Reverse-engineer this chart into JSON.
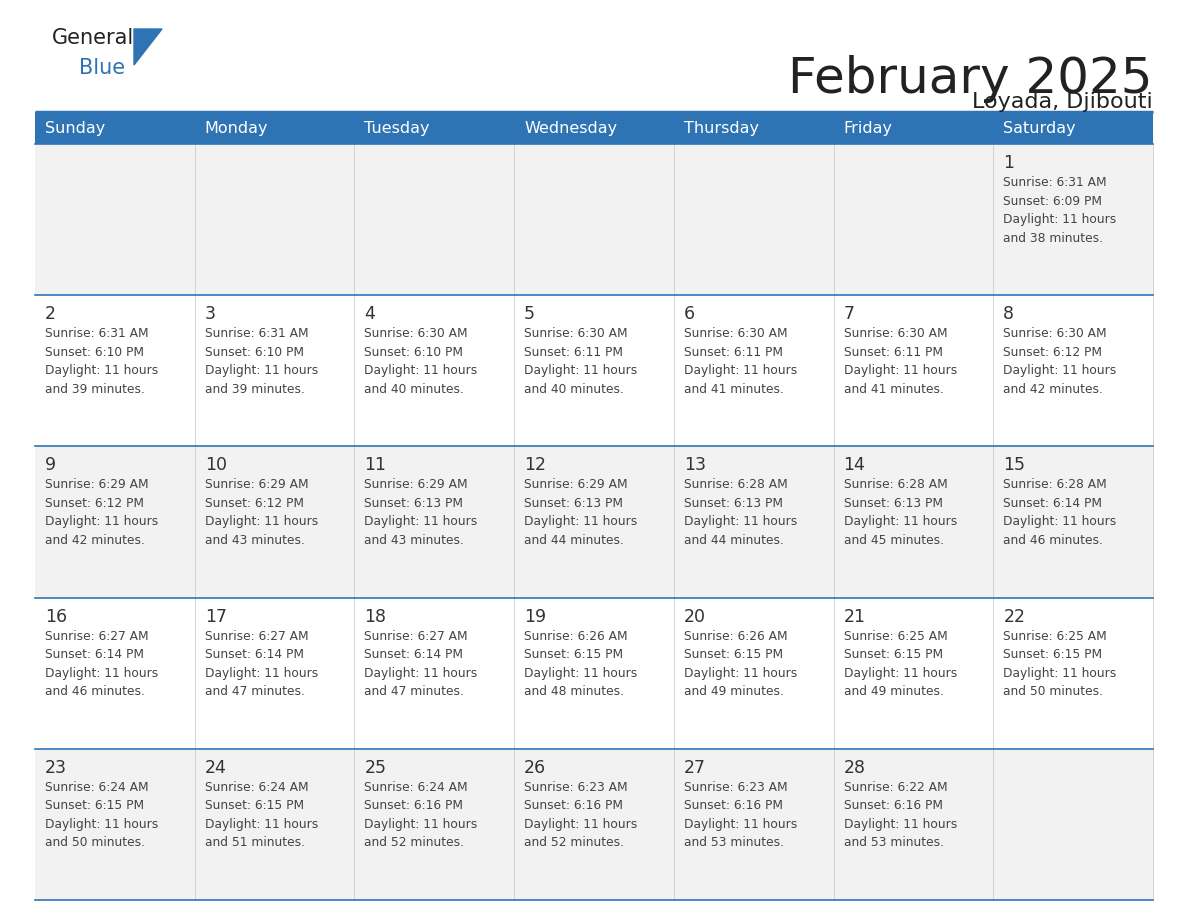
{
  "title": "February 2025",
  "subtitle": "Loyada, Djibouti",
  "days_of_week": [
    "Sunday",
    "Monday",
    "Tuesday",
    "Wednesday",
    "Thursday",
    "Friday",
    "Saturday"
  ],
  "header_bg": "#2E74B5",
  "header_text": "#FFFFFF",
  "cell_bg_even": "#F2F2F2",
  "cell_bg_odd": "#FFFFFF",
  "border_color": "#2E74B5",
  "text_color": "#444444",
  "day_num_color": "#333333",
  "title_color": "#222222",
  "logo_general_color": "#222222",
  "logo_blue_color": "#2E74B5",
  "logo_triangle_color": "#2E74B5",
  "calendar_data": [
    [
      {
        "day": null
      },
      {
        "day": null
      },
      {
        "day": null
      },
      {
        "day": null
      },
      {
        "day": null
      },
      {
        "day": null
      },
      {
        "day": 1,
        "sunrise": "6:31 AM",
        "sunset": "6:09 PM",
        "daylight": "11 hours and 38 minutes."
      }
    ],
    [
      {
        "day": 2,
        "sunrise": "6:31 AM",
        "sunset": "6:10 PM",
        "daylight": "11 hours and 39 minutes."
      },
      {
        "day": 3,
        "sunrise": "6:31 AM",
        "sunset": "6:10 PM",
        "daylight": "11 hours and 39 minutes."
      },
      {
        "day": 4,
        "sunrise": "6:30 AM",
        "sunset": "6:10 PM",
        "daylight": "11 hours and 40 minutes."
      },
      {
        "day": 5,
        "sunrise": "6:30 AM",
        "sunset": "6:11 PM",
        "daylight": "11 hours and 40 minutes."
      },
      {
        "day": 6,
        "sunrise": "6:30 AM",
        "sunset": "6:11 PM",
        "daylight": "11 hours and 41 minutes."
      },
      {
        "day": 7,
        "sunrise": "6:30 AM",
        "sunset": "6:11 PM",
        "daylight": "11 hours and 41 minutes."
      },
      {
        "day": 8,
        "sunrise": "6:30 AM",
        "sunset": "6:12 PM",
        "daylight": "11 hours and 42 minutes."
      }
    ],
    [
      {
        "day": 9,
        "sunrise": "6:29 AM",
        "sunset": "6:12 PM",
        "daylight": "11 hours and 42 minutes."
      },
      {
        "day": 10,
        "sunrise": "6:29 AM",
        "sunset": "6:12 PM",
        "daylight": "11 hours and 43 minutes."
      },
      {
        "day": 11,
        "sunrise": "6:29 AM",
        "sunset": "6:13 PM",
        "daylight": "11 hours and 43 minutes."
      },
      {
        "day": 12,
        "sunrise": "6:29 AM",
        "sunset": "6:13 PM",
        "daylight": "11 hours and 44 minutes."
      },
      {
        "day": 13,
        "sunrise": "6:28 AM",
        "sunset": "6:13 PM",
        "daylight": "11 hours and 44 minutes."
      },
      {
        "day": 14,
        "sunrise": "6:28 AM",
        "sunset": "6:13 PM",
        "daylight": "11 hours and 45 minutes."
      },
      {
        "day": 15,
        "sunrise": "6:28 AM",
        "sunset": "6:14 PM",
        "daylight": "11 hours and 46 minutes."
      }
    ],
    [
      {
        "day": 16,
        "sunrise": "6:27 AM",
        "sunset": "6:14 PM",
        "daylight": "11 hours and 46 minutes."
      },
      {
        "day": 17,
        "sunrise": "6:27 AM",
        "sunset": "6:14 PM",
        "daylight": "11 hours and 47 minutes."
      },
      {
        "day": 18,
        "sunrise": "6:27 AM",
        "sunset": "6:14 PM",
        "daylight": "11 hours and 47 minutes."
      },
      {
        "day": 19,
        "sunrise": "6:26 AM",
        "sunset": "6:15 PM",
        "daylight": "11 hours and 48 minutes."
      },
      {
        "day": 20,
        "sunrise": "6:26 AM",
        "sunset": "6:15 PM",
        "daylight": "11 hours and 49 minutes."
      },
      {
        "day": 21,
        "sunrise": "6:25 AM",
        "sunset": "6:15 PM",
        "daylight": "11 hours and 49 minutes."
      },
      {
        "day": 22,
        "sunrise": "6:25 AM",
        "sunset": "6:15 PM",
        "daylight": "11 hours and 50 minutes."
      }
    ],
    [
      {
        "day": 23,
        "sunrise": "6:24 AM",
        "sunset": "6:15 PM",
        "daylight": "11 hours and 50 minutes."
      },
      {
        "day": 24,
        "sunrise": "6:24 AM",
        "sunset": "6:15 PM",
        "daylight": "11 hours and 51 minutes."
      },
      {
        "day": 25,
        "sunrise": "6:24 AM",
        "sunset": "6:16 PM",
        "daylight": "11 hours and 52 minutes."
      },
      {
        "day": 26,
        "sunrise": "6:23 AM",
        "sunset": "6:16 PM",
        "daylight": "11 hours and 52 minutes."
      },
      {
        "day": 27,
        "sunrise": "6:23 AM",
        "sunset": "6:16 PM",
        "daylight": "11 hours and 53 minutes."
      },
      {
        "day": 28,
        "sunrise": "6:22 AM",
        "sunset": "6:16 PM",
        "daylight": "11 hours and 53 minutes."
      },
      {
        "day": null
      }
    ]
  ],
  "fig_width": 11.88,
  "fig_height": 9.18,
  "dpi": 100
}
